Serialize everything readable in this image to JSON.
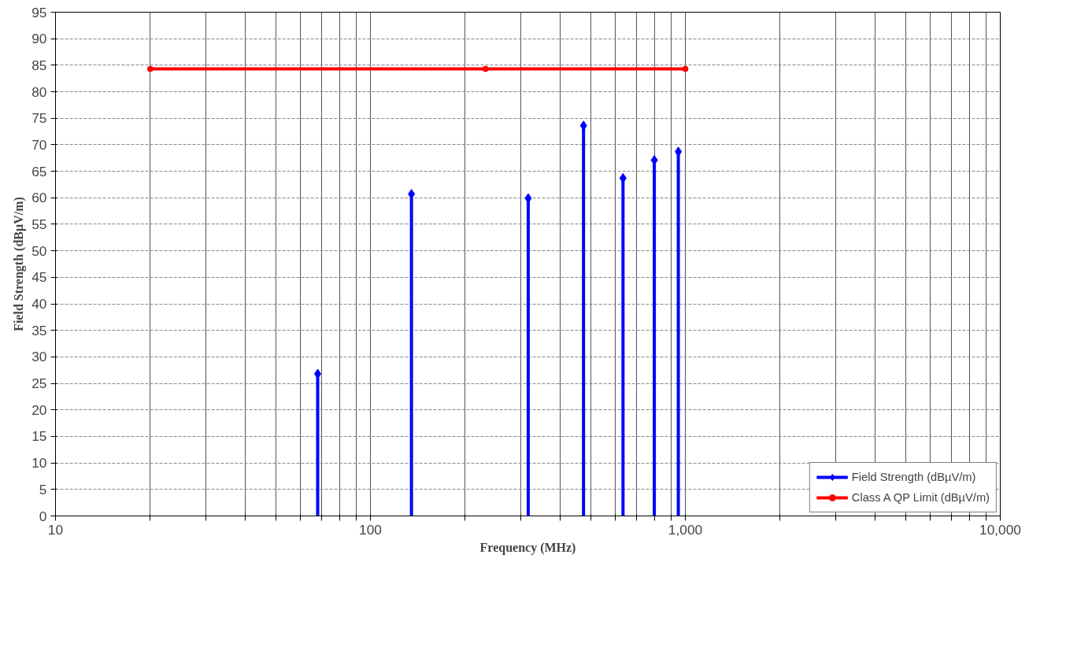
{
  "chart_data": {
    "type": "lollipop",
    "xlabel": "Frequency (MHz)",
    "ylabel": "Field Strength (dBµV/m)",
    "log": "x",
    "xlim": [
      10,
      10000
    ],
    "ylim": [
      0,
      95
    ],
    "xticks": [
      10,
      {
        "value": 20,
        "label": null
      },
      {
        "value": 30,
        "label": null
      },
      {
        "value": 40,
        "label": null
      },
      {
        "value": 50,
        "label": null
      },
      {
        "value": 60,
        "label": null
      },
      {
        "value": 70,
        "label": null
      },
      {
        "value": 80,
        "label": null
      },
      {
        "value": 90,
        "label": null
      },
      100,
      {
        "value": 200,
        "label": null
      },
      {
        "value": 300,
        "label": null
      },
      {
        "value": 400,
        "label": null
      },
      {
        "value": 500,
        "label": null
      },
      {
        "value": 600,
        "label": null
      },
      {
        "value": 700,
        "label": null
      },
      {
        "value": 800,
        "label": null
      },
      {
        "value": 900,
        "label": null
      },
      {
        "value": 1000,
        "label": "1,000"
      },
      {
        "value": 2000,
        "label": null
      },
      {
        "value": 3000,
        "label": null
      },
      {
        "value": 4000,
        "label": null
      },
      {
        "value": 5000,
        "label": null
      },
      {
        "value": 6000,
        "label": null
      },
      {
        "value": 7000,
        "label": null
      },
      {
        "value": 8000,
        "label": null
      },
      {
        "value": 9000,
        "label": null
      },
      {
        "value": 10000,
        "label": "10,000"
      }
    ],
    "yticks": [
      0,
      5,
      10,
      15,
      20,
      25,
      30,
      35,
      40,
      45,
      50,
      55,
      60,
      65,
      70,
      75,
      80,
      85,
      90,
      95
    ],
    "grid": true,
    "legend": "bottom right",
    "series": [
      {
        "name": "Field Strength (dBµV/m)",
        "marker": "diamond",
        "color": "#0000ff",
        "x": [
          68,
          135,
          317,
          475,
          634,
          797,
          950
        ],
        "values": [
          26.8,
          60.7,
          59.9,
          73.6,
          63.7,
          67.1,
          68.7
        ]
      },
      {
        "name": "Class A QP Limit (dBµV/m)",
        "type": "line",
        "marker": "circle",
        "color": "#ff0000",
        "x": [
          20,
          232,
          1000
        ],
        "values": [
          84.3,
          84.3,
          84.3
        ]
      }
    ]
  }
}
